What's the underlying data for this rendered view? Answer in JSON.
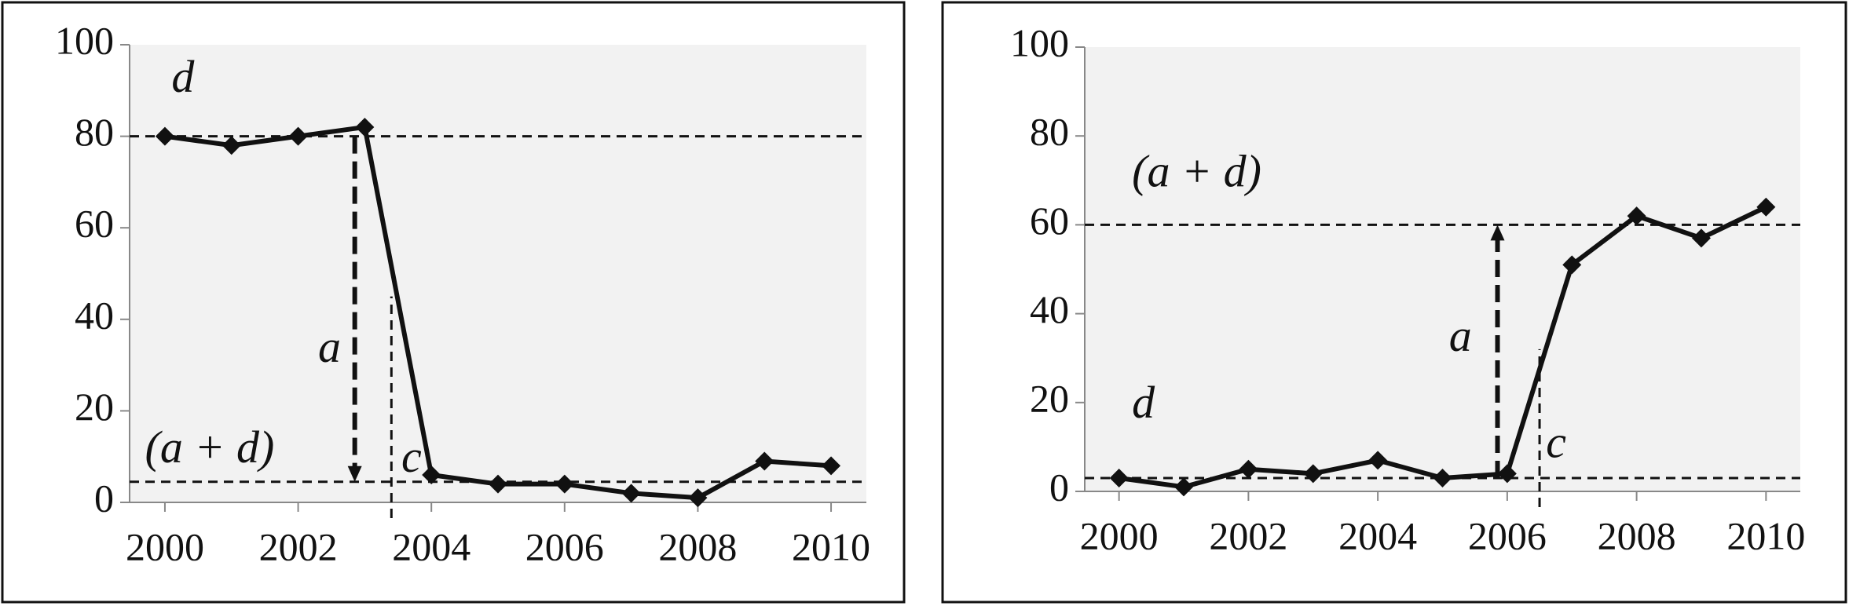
{
  "chart_data": [
    {
      "type": "line",
      "x": [
        2000,
        2001,
        2002,
        2003,
        2004,
        2005,
        2006,
        2007,
        2008,
        2009,
        2010
      ],
      "series": [
        {
          "color": "#111111",
          "values": [
            80,
            78,
            80,
            82,
            6,
            4,
            4,
            2,
            1,
            9,
            8
          ]
        }
      ],
      "xlim": [
        1999.47,
        2010.53
      ],
      "xticks": [
        2000,
        2002,
        2004,
        2006,
        2008,
        2010
      ],
      "ylim": [
        0,
        100
      ],
      "yticks": [
        0,
        20,
        40,
        60,
        80,
        100
      ],
      "hlines": [
        80,
        4.5
      ],
      "arrow": {
        "x": 2002.85,
        "from": 80,
        "to": 4.5
      },
      "vline": {
        "x": 2003.4,
        "to": 45
      },
      "annotations": [
        "d",
        "(a + d)",
        "a⃗",
        "c"
      ]
    },
    {
      "type": "line",
      "x": [
        2000,
        2001,
        2002,
        2003,
        2004,
        2005,
        2006,
        2007,
        2008,
        2009,
        2010
      ],
      "series": [
        {
          "color": "#111111",
          "values": [
            3,
            1,
            5,
            4,
            7,
            3,
            4,
            51,
            62,
            57,
            64
          ]
        }
      ],
      "xlim": [
        1999.47,
        2010.53
      ],
      "xticks": [
        2000,
        2002,
        2004,
        2006,
        2008,
        2010
      ],
      "ylim": [
        0,
        100
      ],
      "yticks": [
        0,
        20,
        40,
        60,
        80,
        100
      ],
      "hlines": [
        60,
        3
      ],
      "arrow": {
        "x": 2005.85,
        "from": 3,
        "to": 60
      },
      "vline": {
        "x": 2006.5,
        "to": 32
      },
      "annotations": [
        "(a + d)",
        "d",
        "a⃗",
        "c"
      ]
    }
  ]
}
